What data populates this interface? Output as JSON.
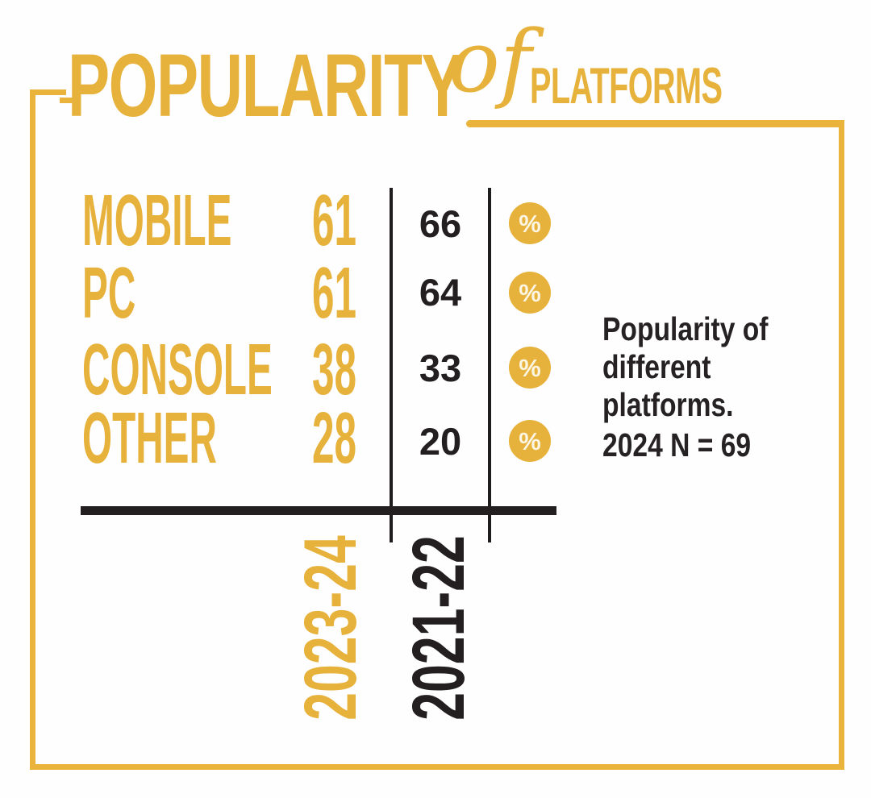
{
  "title": {
    "main": "POPULARITY",
    "connector": "of",
    "sub": "PLATFORMS"
  },
  "columns": {
    "current": "2023-24",
    "previous": "2021-22"
  },
  "unit_symbol": "%",
  "rows": [
    {
      "label": "MOBILE",
      "current": "61",
      "previous": "66"
    },
    {
      "label": "PC",
      "current": "61",
      "previous": "64"
    },
    {
      "label": "CONSOLE",
      "current": "38",
      "previous": "33"
    },
    {
      "label": "OTHER",
      "current": "28",
      "previous": "20"
    }
  ],
  "note": {
    "line1": "Popularity of",
    "line2": "different",
    "line3": "platforms.",
    "sample": "2024 N = 69"
  },
  "colors": {
    "gold": "#E7B23C",
    "ink": "#231F20",
    "badge_glyph": "#FBF5E2",
    "background": "#FEFEFE"
  },
  "chart_data": {
    "type": "table",
    "title": "Popularity of Platforms",
    "categories": [
      "MOBILE",
      "PC",
      "CONSOLE",
      "OTHER"
    ],
    "series": [
      {
        "name": "2023-24",
        "values": [
          61,
          61,
          38,
          28
        ]
      },
      {
        "name": "2021-22",
        "values": [
          66,
          64,
          33,
          20
        ]
      }
    ],
    "unit": "%",
    "note": "Popularity of different platforms.",
    "sample_note": "2024 N = 69"
  }
}
